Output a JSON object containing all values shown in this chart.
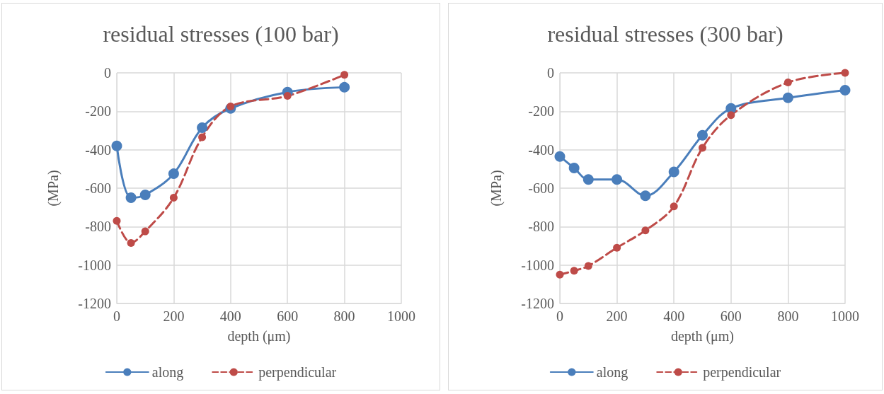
{
  "chart_data": [
    {
      "type": "line",
      "title": "residual stresses (100 bar)",
      "xlabel": "depth (μm)",
      "ylabel": "(MPa)",
      "xlim": [
        0,
        1000
      ],
      "xticks": [
        0,
        200,
        400,
        600,
        800,
        1000
      ],
      "ylim": [
        -1200,
        0
      ],
      "yticks": [
        -1200,
        -1000,
        -800,
        -600,
        -400,
        -200,
        0
      ],
      "grid": true,
      "legend": "bottom",
      "marker": "circle",
      "series": [
        {
          "name": "along",
          "color": "#4a7ebb",
          "line_style": "solid",
          "x": [
            0,
            50,
            100,
            200,
            300,
            400,
            600,
            800
          ],
          "values": [
            -380,
            -650,
            -635,
            -525,
            -285,
            -185,
            -100,
            -75
          ]
        },
        {
          "name": "perpendicular",
          "color": "#be4b48",
          "line_style": "dashed",
          "x": [
            0,
            50,
            100,
            200,
            300,
            400,
            600,
            800
          ],
          "values": [
            -770,
            -885,
            -825,
            -650,
            -335,
            -175,
            -120,
            -10
          ]
        }
      ]
    },
    {
      "type": "line",
      "title": "residual stresses (300 bar)",
      "xlabel": "depth (μm)",
      "ylabel": "(MPa)",
      "xlim": [
        0,
        1000
      ],
      "xticks": [
        0,
        200,
        400,
        600,
        800,
        1000
      ],
      "ylim": [
        -1200,
        0
      ],
      "yticks": [
        -1200,
        -1000,
        -800,
        -600,
        -400,
        -200,
        0
      ],
      "grid": true,
      "legend": "bottom",
      "marker": "circle",
      "series": [
        {
          "name": "along",
          "color": "#4a7ebb",
          "line_style": "solid",
          "x": [
            0,
            50,
            100,
            200,
            300,
            400,
            500,
            600,
            800,
            1000
          ],
          "values": [
            -435,
            -495,
            -555,
            -555,
            -640,
            -515,
            -325,
            -185,
            -130,
            -90
          ]
        },
        {
          "name": "perpendicular",
          "color": "#be4b48",
          "line_style": "dashed",
          "x": [
            0,
            50,
            100,
            200,
            300,
            400,
            500,
            600,
            800,
            1000
          ],
          "values": [
            -1050,
            -1030,
            -1005,
            -910,
            -820,
            -695,
            -390,
            -220,
            -50,
            0
          ]
        }
      ]
    }
  ]
}
